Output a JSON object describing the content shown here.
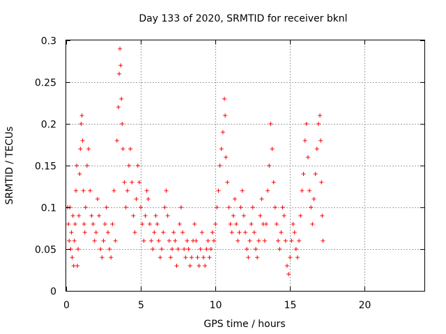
{
  "chart_data": {
    "type": "scatter",
    "title": "Day 133 of 2020, SRMTID for receiver bknl",
    "xlabel": "GPS time / hours",
    "ylabel": "SRMTID / TECUs",
    "xlim": [
      0,
      24
    ],
    "ylim": [
      0,
      0.3
    ],
    "x_ticks": [
      0,
      5,
      10,
      15,
      20
    ],
    "x_tick_labels": [
      "0",
      "5",
      "10",
      "15",
      "20"
    ],
    "y_ticks": [
      0,
      0.05,
      0.1,
      0.15,
      0.2,
      0.25,
      0.3
    ],
    "y_tick_labels": [
      "0",
      "0.05",
      "0.1",
      "0.15",
      "0.2",
      "0.25",
      "0.3"
    ],
    "grid": true,
    "marker": "+",
    "marker_color": "#ff0000",
    "series": [
      {
        "name": "SRMTID",
        "points": [
          [
            0.1,
            0.1
          ],
          [
            0.15,
            0.08
          ],
          [
            0.2,
            0.06
          ],
          [
            0.25,
            0.1
          ],
          [
            0.3,
            0.05
          ],
          [
            0.35,
            0.07
          ],
          [
            0.4,
            0.04
          ],
          [
            0.45,
            0.09
          ],
          [
            0.5,
            0.03
          ],
          [
            0.55,
            0.06
          ],
          [
            0.6,
            0.08
          ],
          [
            0.65,
            0.12
          ],
          [
            0.7,
            0.15
          ],
          [
            0.75,
            0.03
          ],
          [
            0.8,
            0.05
          ],
          [
            0.85,
            0.09
          ],
          [
            0.9,
            0.14
          ],
          [
            0.95,
            0.17
          ],
          [
            1.0,
            0.2
          ],
          [
            1.05,
            0.21
          ],
          [
            1.1,
            0.18
          ],
          [
            1.15,
            0.12
          ],
          [
            1.2,
            0.08
          ],
          [
            1.25,
            0.07
          ],
          [
            1.3,
            0.1
          ],
          [
            1.4,
            0.15
          ],
          [
            1.5,
            0.17
          ],
          [
            1.6,
            0.12
          ],
          [
            1.7,
            0.09
          ],
          [
            1.8,
            0.08
          ],
          [
            1.9,
            0.06
          ],
          [
            2.0,
            0.07
          ],
          [
            2.1,
            0.11
          ],
          [
            2.2,
            0.09
          ],
          [
            2.3,
            0.05
          ],
          [
            2.4,
            0.04
          ],
          [
            2.5,
            0.06
          ],
          [
            2.6,
            0.08
          ],
          [
            2.7,
            0.1
          ],
          [
            2.8,
            0.07
          ],
          [
            2.9,
            0.05
          ],
          [
            3.0,
            0.04
          ],
          [
            3.1,
            0.08
          ],
          [
            3.2,
            0.12
          ],
          [
            3.3,
            0.06
          ],
          [
            3.4,
            0.18
          ],
          [
            3.5,
            0.22
          ],
          [
            3.55,
            0.26
          ],
          [
            3.6,
            0.29
          ],
          [
            3.65,
            0.27
          ],
          [
            3.7,
            0.23
          ],
          [
            3.75,
            0.2
          ],
          [
            3.8,
            0.17
          ],
          [
            3.9,
            0.13
          ],
          [
            4.0,
            0.1
          ],
          [
            4.1,
            0.12
          ],
          [
            4.2,
            0.15
          ],
          [
            4.3,
            0.17
          ],
          [
            4.4,
            0.13
          ],
          [
            4.5,
            0.09
          ],
          [
            4.6,
            0.07
          ],
          [
            4.7,
            0.11
          ],
          [
            4.8,
            0.15
          ],
          [
            4.9,
            0.13
          ],
          [
            5.0,
            0.1
          ],
          [
            5.1,
            0.08
          ],
          [
            5.2,
            0.06
          ],
          [
            5.3,
            0.09
          ],
          [
            5.4,
            0.12
          ],
          [
            5.5,
            0.11
          ],
          [
            5.6,
            0.08
          ],
          [
            5.7,
            0.06
          ],
          [
            5.8,
            0.05
          ],
          [
            5.9,
            0.07
          ],
          [
            6.0,
            0.09
          ],
          [
            6.1,
            0.08
          ],
          [
            6.2,
            0.06
          ],
          [
            6.3,
            0.04
          ],
          [
            6.4,
            0.05
          ],
          [
            6.5,
            0.07
          ],
          [
            6.6,
            0.1
          ],
          [
            6.7,
            0.12
          ],
          [
            6.8,
            0.09
          ],
          [
            6.9,
            0.06
          ],
          [
            7.0,
            0.04
          ],
          [
            7.1,
            0.05
          ],
          [
            7.2,
            0.07
          ],
          [
            7.3,
            0.06
          ],
          [
            7.4,
            0.03
          ],
          [
            7.5,
            0.05
          ],
          [
            7.6,
            0.08
          ],
          [
            7.7,
            0.1
          ],
          [
            7.8,
            0.07
          ],
          [
            7.9,
            0.05
          ],
          [
            8.0,
            0.04
          ],
          [
            8.1,
            0.06
          ],
          [
            8.2,
            0.05
          ],
          [
            8.3,
            0.03
          ],
          [
            8.4,
            0.04
          ],
          [
            8.5,
            0.06
          ],
          [
            8.6,
            0.08
          ],
          [
            8.7,
            0.06
          ],
          [
            8.8,
            0.04
          ],
          [
            8.9,
            0.03
          ],
          [
            9.0,
            0.05
          ],
          [
            9.1,
            0.07
          ],
          [
            9.2,
            0.04
          ],
          [
            9.3,
            0.03
          ],
          [
            9.4,
            0.05
          ],
          [
            9.5,
            0.06
          ],
          [
            9.6,
            0.04
          ],
          [
            9.7,
            0.05
          ],
          [
            9.8,
            0.07
          ],
          [
            9.9,
            0.06
          ],
          [
            10.0,
            0.08
          ],
          [
            10.1,
            0.1
          ],
          [
            10.2,
            0.12
          ],
          [
            10.3,
            0.15
          ],
          [
            10.4,
            0.17
          ],
          [
            10.5,
            0.19
          ],
          [
            10.6,
            0.23
          ],
          [
            10.65,
            0.21
          ],
          [
            10.7,
            0.16
          ],
          [
            10.8,
            0.13
          ],
          [
            10.9,
            0.1
          ],
          [
            11.0,
            0.08
          ],
          [
            11.1,
            0.07
          ],
          [
            11.2,
            0.09
          ],
          [
            11.3,
            0.11
          ],
          [
            11.4,
            0.08
          ],
          [
            11.5,
            0.06
          ],
          [
            11.6,
            0.07
          ],
          [
            11.7,
            0.1
          ],
          [
            11.8,
            0.12
          ],
          [
            11.9,
            0.09
          ],
          [
            12.0,
            0.07
          ],
          [
            12.1,
            0.05
          ],
          [
            12.2,
            0.04
          ],
          [
            12.3,
            0.06
          ],
          [
            12.4,
            0.08
          ],
          [
            12.5,
            0.1
          ],
          [
            12.6,
            0.07
          ],
          [
            12.7,
            0.05
          ],
          [
            12.8,
            0.04
          ],
          [
            12.9,
            0.06
          ],
          [
            13.0,
            0.09
          ],
          [
            13.1,
            0.11
          ],
          [
            13.2,
            0.08
          ],
          [
            13.3,
            0.06
          ],
          [
            13.4,
            0.08
          ],
          [
            13.5,
            0.12
          ],
          [
            13.6,
            0.15
          ],
          [
            13.7,
            0.2
          ],
          [
            13.8,
            0.17
          ],
          [
            13.9,
            0.13
          ],
          [
            14.0,
            0.1
          ],
          [
            14.1,
            0.08
          ],
          [
            14.2,
            0.06
          ],
          [
            14.3,
            0.05
          ],
          [
            14.4,
            0.07
          ],
          [
            14.5,
            0.1
          ],
          [
            14.6,
            0.09
          ],
          [
            14.7,
            0.06
          ],
          [
            14.8,
            0.03
          ],
          [
            14.9,
            0.02
          ],
          [
            15.0,
            0.04
          ],
          [
            15.1,
            0.06
          ],
          [
            15.2,
            0.08
          ],
          [
            15.3,
            0.07
          ],
          [
            15.4,
            0.05
          ],
          [
            15.5,
            0.04
          ],
          [
            15.6,
            0.06
          ],
          [
            15.7,
            0.09
          ],
          [
            15.8,
            0.12
          ],
          [
            15.9,
            0.14
          ],
          [
            16.0,
            0.18
          ],
          [
            16.1,
            0.2
          ],
          [
            16.2,
            0.16
          ],
          [
            16.3,
            0.12
          ],
          [
            16.4,
            0.1
          ],
          [
            16.5,
            0.08
          ],
          [
            16.6,
            0.11
          ],
          [
            16.7,
            0.14
          ],
          [
            16.8,
            0.17
          ],
          [
            16.9,
            0.2
          ],
          [
            17.0,
            0.21
          ],
          [
            17.05,
            0.18
          ],
          [
            17.1,
            0.13
          ],
          [
            17.15,
            0.09
          ],
          [
            17.2,
            0.06
          ]
        ]
      }
    ]
  }
}
